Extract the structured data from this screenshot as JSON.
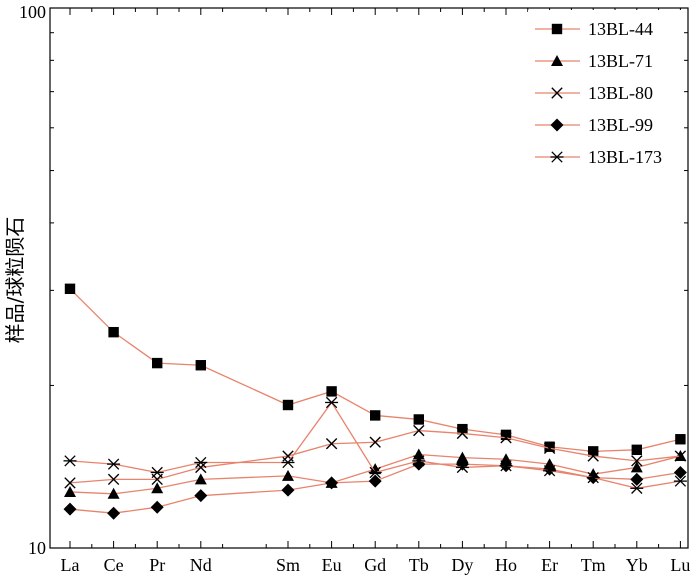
{
  "chart_data": {
    "type": "line",
    "title": "",
    "xlabel": "",
    "ylabel": "样品/球粒陨石",
    "y_scale": "log",
    "ylim": [
      10,
      100
    ],
    "y_ticks": [
      "10",
      "100"
    ],
    "grid": false,
    "legend_position": "top-right",
    "line_color": "#e8836c",
    "categories": [
      "La",
      "Ce",
      "Pr",
      "Nd",
      "Sm",
      "Eu",
      "Gd",
      "Tb",
      "Dy",
      "Ho",
      "Er",
      "Tm",
      "Yb",
      "Lu"
    ],
    "category_index": [
      1,
      2,
      3,
      4,
      6,
      7,
      8,
      9,
      10,
      11,
      12,
      13,
      14,
      15
    ],
    "series": [
      {
        "name": "13BL-44",
        "marker": "square",
        "values": [
          30.2,
          25.1,
          22.0,
          21.8,
          18.4,
          19.5,
          17.6,
          17.3,
          16.6,
          16.2,
          15.4,
          15.1,
          15.2,
          15.9
        ]
      },
      {
        "name": "13BL-71",
        "marker": "triangle",
        "values": [
          12.7,
          12.6,
          12.9,
          13.4,
          13.6,
          13.2,
          14.0,
          14.9,
          14.7,
          14.6,
          14.3,
          13.7,
          14.1,
          14.8
        ]
      },
      {
        "name": "13BL-80",
        "marker": "x",
        "values": [
          13.2,
          13.4,
          13.4,
          14.1,
          14.8,
          15.6,
          15.7,
          16.5,
          16.3,
          16.0,
          15.3,
          14.8,
          14.5,
          14.8
        ]
      },
      {
        "name": "13BL-99",
        "marker": "diamond",
        "values": [
          11.8,
          11.6,
          11.9,
          12.5,
          12.8,
          13.2,
          13.3,
          14.3,
          14.3,
          14.2,
          14.0,
          13.5,
          13.4,
          13.8
        ]
      },
      {
        "name": "13BL-173",
        "marker": "asterisk",
        "values": [
          14.5,
          14.3,
          13.8,
          14.4,
          14.4,
          18.6,
          13.8,
          14.5,
          14.1,
          14.2,
          13.9,
          13.5,
          12.9,
          13.3
        ]
      }
    ]
  }
}
